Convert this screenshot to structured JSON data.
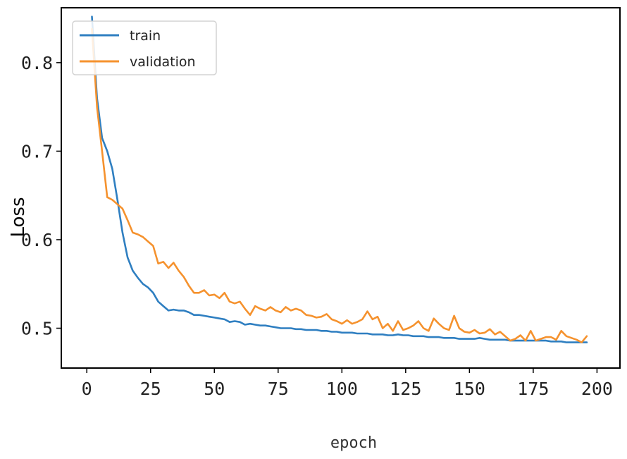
{
  "chart_data": {
    "type": "line",
    "title": "",
    "xlabel": "epoch",
    "ylabel": "Loss",
    "xlim": [
      -10,
      209
    ],
    "ylim": [
      0.455,
      0.862
    ],
    "xticks": [
      0,
      25,
      50,
      75,
      100,
      125,
      150,
      175,
      200
    ],
    "xtick_labels": [
      "0",
      "25",
      "50",
      "75",
      "100",
      "125",
      "150",
      "175",
      "200"
    ],
    "yticks": [
      0.5,
      0.6,
      0.7,
      0.8
    ],
    "ytick_labels": [
      "0.5",
      "0.6",
      "0.7",
      "0.8"
    ],
    "grid": false,
    "legend_position": "top-left",
    "series": [
      {
        "name": "train",
        "color": "#2f7fc1",
        "x": [
          2,
          4,
          6,
          8,
          10,
          12,
          14,
          16,
          18,
          20,
          22,
          24,
          26,
          28,
          30,
          32,
          34,
          36,
          38,
          40,
          42,
          44,
          46,
          48,
          50,
          52,
          54,
          56,
          58,
          60,
          62,
          64,
          66,
          68,
          70,
          72,
          74,
          76,
          78,
          80,
          82,
          84,
          86,
          88,
          90,
          92,
          94,
          96,
          98,
          100,
          102,
          104,
          106,
          108,
          110,
          112,
          114,
          116,
          118,
          120,
          122,
          124,
          126,
          128,
          130,
          132,
          134,
          136,
          138,
          140,
          142,
          144,
          146,
          148,
          150,
          152,
          154,
          156,
          158,
          160,
          162,
          164,
          166,
          168,
          170,
          172,
          174,
          176,
          178,
          180,
          182,
          184,
          186,
          188,
          190,
          192,
          194,
          196
        ],
        "y": [
          0.852,
          0.76,
          0.715,
          0.7,
          0.68,
          0.645,
          0.608,
          0.58,
          0.565,
          0.557,
          0.55,
          0.546,
          0.54,
          0.53,
          0.525,
          0.52,
          0.521,
          0.52,
          0.52,
          0.518,
          0.515,
          0.515,
          0.514,
          0.513,
          0.512,
          0.511,
          0.51,
          0.507,
          0.508,
          0.507,
          0.504,
          0.505,
          0.504,
          0.503,
          0.503,
          0.502,
          0.501,
          0.5,
          0.5,
          0.5,
          0.499,
          0.499,
          0.498,
          0.498,
          0.498,
          0.497,
          0.497,
          0.496,
          0.496,
          0.495,
          0.495,
          0.495,
          0.494,
          0.494,
          0.494,
          0.493,
          0.493,
          0.493,
          0.492,
          0.492,
          0.493,
          0.492,
          0.492,
          0.491,
          0.491,
          0.491,
          0.49,
          0.49,
          0.49,
          0.489,
          0.489,
          0.489,
          0.488,
          0.488,
          0.488,
          0.488,
          0.489,
          0.488,
          0.487,
          0.487,
          0.487,
          0.487,
          0.486,
          0.486,
          0.486,
          0.486,
          0.486,
          0.486,
          0.486,
          0.486,
          0.485,
          0.485,
          0.485,
          0.484,
          0.484,
          0.484,
          0.484,
          0.484
        ]
      },
      {
        "name": "validation",
        "color": "#f5922e",
        "x": [
          2,
          4,
          6,
          8,
          10,
          12,
          14,
          16,
          18,
          20,
          22,
          24,
          26,
          28,
          30,
          32,
          34,
          36,
          38,
          40,
          42,
          44,
          46,
          48,
          50,
          52,
          54,
          56,
          58,
          60,
          62,
          64,
          66,
          68,
          70,
          72,
          74,
          76,
          78,
          80,
          82,
          84,
          86,
          88,
          90,
          92,
          94,
          96,
          98,
          100,
          102,
          104,
          106,
          108,
          110,
          112,
          114,
          116,
          118,
          120,
          122,
          124,
          126,
          128,
          130,
          132,
          134,
          136,
          138,
          140,
          142,
          144,
          146,
          148,
          150,
          152,
          154,
          156,
          158,
          160,
          162,
          164,
          166,
          168,
          170,
          172,
          174,
          176,
          178,
          180,
          182,
          184,
          186,
          188,
          190,
          192,
          194,
          196
        ],
        "y": [
          0.838,
          0.75,
          0.7,
          0.648,
          0.645,
          0.64,
          0.635,
          0.622,
          0.608,
          0.606,
          0.603,
          0.598,
          0.593,
          0.573,
          0.575,
          0.568,
          0.574,
          0.565,
          0.558,
          0.548,
          0.54,
          0.54,
          0.543,
          0.537,
          0.538,
          0.534,
          0.54,
          0.53,
          0.528,
          0.53,
          0.522,
          0.515,
          0.525,
          0.522,
          0.52,
          0.524,
          0.52,
          0.518,
          0.524,
          0.52,
          0.522,
          0.52,
          0.515,
          0.514,
          0.512,
          0.513,
          0.516,
          0.51,
          0.508,
          0.505,
          0.509,
          0.505,
          0.507,
          0.51,
          0.519,
          0.51,
          0.513,
          0.5,
          0.505,
          0.497,
          0.508,
          0.498,
          0.5,
          0.503,
          0.508,
          0.5,
          0.497,
          0.511,
          0.505,
          0.5,
          0.498,
          0.514,
          0.5,
          0.496,
          0.495,
          0.498,
          0.494,
          0.495,
          0.499,
          0.493,
          0.496,
          0.491,
          0.486,
          0.488,
          0.492,
          0.486,
          0.497,
          0.486,
          0.488,
          0.49,
          0.49,
          0.487,
          0.497,
          0.491,
          0.489,
          0.487,
          0.484,
          0.491
        ]
      }
    ]
  }
}
